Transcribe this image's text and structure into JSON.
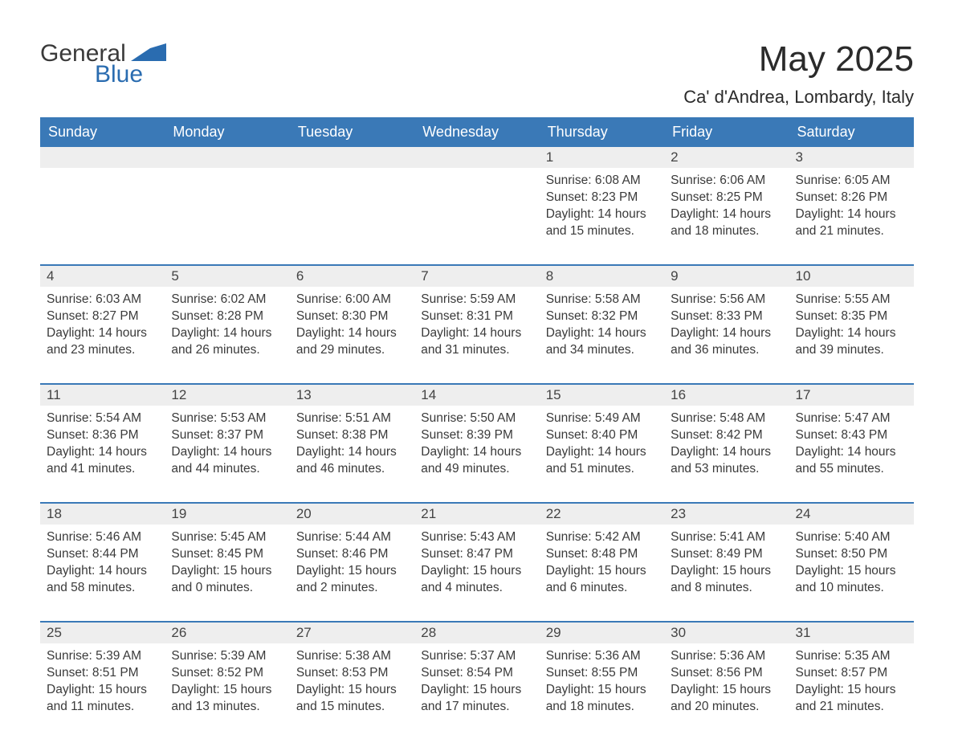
{
  "logo": {
    "text_general": "General",
    "text_blue": "Blue",
    "accent_color": "#2a6cb0"
  },
  "title": "May 2025",
  "location": "Ca' d'Andrea, Lombardy, Italy",
  "colors": {
    "header_bg": "#3a79b7",
    "header_text": "#ffffff",
    "daybar_bg": "#eeeeee",
    "row_border": "#3a79b7",
    "text": "#3a3a3a",
    "background": "#ffffff"
  },
  "day_headers": [
    "Sunday",
    "Monday",
    "Tuesday",
    "Wednesday",
    "Thursday",
    "Friday",
    "Saturday"
  ],
  "weeks": [
    [
      {
        "empty": true
      },
      {
        "empty": true
      },
      {
        "empty": true
      },
      {
        "empty": true
      },
      {
        "day": "1",
        "sunrise": "Sunrise: 6:08 AM",
        "sunset": "Sunset: 8:23 PM",
        "daylight": "Daylight: 14 hours and 15 minutes."
      },
      {
        "day": "2",
        "sunrise": "Sunrise: 6:06 AM",
        "sunset": "Sunset: 8:25 PM",
        "daylight": "Daylight: 14 hours and 18 minutes."
      },
      {
        "day": "3",
        "sunrise": "Sunrise: 6:05 AM",
        "sunset": "Sunset: 8:26 PM",
        "daylight": "Daylight: 14 hours and 21 minutes."
      }
    ],
    [
      {
        "day": "4",
        "sunrise": "Sunrise: 6:03 AM",
        "sunset": "Sunset: 8:27 PM",
        "daylight": "Daylight: 14 hours and 23 minutes."
      },
      {
        "day": "5",
        "sunrise": "Sunrise: 6:02 AM",
        "sunset": "Sunset: 8:28 PM",
        "daylight": "Daylight: 14 hours and 26 minutes."
      },
      {
        "day": "6",
        "sunrise": "Sunrise: 6:00 AM",
        "sunset": "Sunset: 8:30 PM",
        "daylight": "Daylight: 14 hours and 29 minutes."
      },
      {
        "day": "7",
        "sunrise": "Sunrise: 5:59 AM",
        "sunset": "Sunset: 8:31 PM",
        "daylight": "Daylight: 14 hours and 31 minutes."
      },
      {
        "day": "8",
        "sunrise": "Sunrise: 5:58 AM",
        "sunset": "Sunset: 8:32 PM",
        "daylight": "Daylight: 14 hours and 34 minutes."
      },
      {
        "day": "9",
        "sunrise": "Sunrise: 5:56 AM",
        "sunset": "Sunset: 8:33 PM",
        "daylight": "Daylight: 14 hours and 36 minutes."
      },
      {
        "day": "10",
        "sunrise": "Sunrise: 5:55 AM",
        "sunset": "Sunset: 8:35 PM",
        "daylight": "Daylight: 14 hours and 39 minutes."
      }
    ],
    [
      {
        "day": "11",
        "sunrise": "Sunrise: 5:54 AM",
        "sunset": "Sunset: 8:36 PM",
        "daylight": "Daylight: 14 hours and 41 minutes."
      },
      {
        "day": "12",
        "sunrise": "Sunrise: 5:53 AM",
        "sunset": "Sunset: 8:37 PM",
        "daylight": "Daylight: 14 hours and 44 minutes."
      },
      {
        "day": "13",
        "sunrise": "Sunrise: 5:51 AM",
        "sunset": "Sunset: 8:38 PM",
        "daylight": "Daylight: 14 hours and 46 minutes."
      },
      {
        "day": "14",
        "sunrise": "Sunrise: 5:50 AM",
        "sunset": "Sunset: 8:39 PM",
        "daylight": "Daylight: 14 hours and 49 minutes."
      },
      {
        "day": "15",
        "sunrise": "Sunrise: 5:49 AM",
        "sunset": "Sunset: 8:40 PM",
        "daylight": "Daylight: 14 hours and 51 minutes."
      },
      {
        "day": "16",
        "sunrise": "Sunrise: 5:48 AM",
        "sunset": "Sunset: 8:42 PM",
        "daylight": "Daylight: 14 hours and 53 minutes."
      },
      {
        "day": "17",
        "sunrise": "Sunrise: 5:47 AM",
        "sunset": "Sunset: 8:43 PM",
        "daylight": "Daylight: 14 hours and 55 minutes."
      }
    ],
    [
      {
        "day": "18",
        "sunrise": "Sunrise: 5:46 AM",
        "sunset": "Sunset: 8:44 PM",
        "daylight": "Daylight: 14 hours and 58 minutes."
      },
      {
        "day": "19",
        "sunrise": "Sunrise: 5:45 AM",
        "sunset": "Sunset: 8:45 PM",
        "daylight": "Daylight: 15 hours and 0 minutes."
      },
      {
        "day": "20",
        "sunrise": "Sunrise: 5:44 AM",
        "sunset": "Sunset: 8:46 PM",
        "daylight": "Daylight: 15 hours and 2 minutes."
      },
      {
        "day": "21",
        "sunrise": "Sunrise: 5:43 AM",
        "sunset": "Sunset: 8:47 PM",
        "daylight": "Daylight: 15 hours and 4 minutes."
      },
      {
        "day": "22",
        "sunrise": "Sunrise: 5:42 AM",
        "sunset": "Sunset: 8:48 PM",
        "daylight": "Daylight: 15 hours and 6 minutes."
      },
      {
        "day": "23",
        "sunrise": "Sunrise: 5:41 AM",
        "sunset": "Sunset: 8:49 PM",
        "daylight": "Daylight: 15 hours and 8 minutes."
      },
      {
        "day": "24",
        "sunrise": "Sunrise: 5:40 AM",
        "sunset": "Sunset: 8:50 PM",
        "daylight": "Daylight: 15 hours and 10 minutes."
      }
    ],
    [
      {
        "day": "25",
        "sunrise": "Sunrise: 5:39 AM",
        "sunset": "Sunset: 8:51 PM",
        "daylight": "Daylight: 15 hours and 11 minutes."
      },
      {
        "day": "26",
        "sunrise": "Sunrise: 5:39 AM",
        "sunset": "Sunset: 8:52 PM",
        "daylight": "Daylight: 15 hours and 13 minutes."
      },
      {
        "day": "27",
        "sunrise": "Sunrise: 5:38 AM",
        "sunset": "Sunset: 8:53 PM",
        "daylight": "Daylight: 15 hours and 15 minutes."
      },
      {
        "day": "28",
        "sunrise": "Sunrise: 5:37 AM",
        "sunset": "Sunset: 8:54 PM",
        "daylight": "Daylight: 15 hours and 17 minutes."
      },
      {
        "day": "29",
        "sunrise": "Sunrise: 5:36 AM",
        "sunset": "Sunset: 8:55 PM",
        "daylight": "Daylight: 15 hours and 18 minutes."
      },
      {
        "day": "30",
        "sunrise": "Sunrise: 5:36 AM",
        "sunset": "Sunset: 8:56 PM",
        "daylight": "Daylight: 15 hours and 20 minutes."
      },
      {
        "day": "31",
        "sunrise": "Sunrise: 5:35 AM",
        "sunset": "Sunset: 8:57 PM",
        "daylight": "Daylight: 15 hours and 21 minutes."
      }
    ]
  ]
}
